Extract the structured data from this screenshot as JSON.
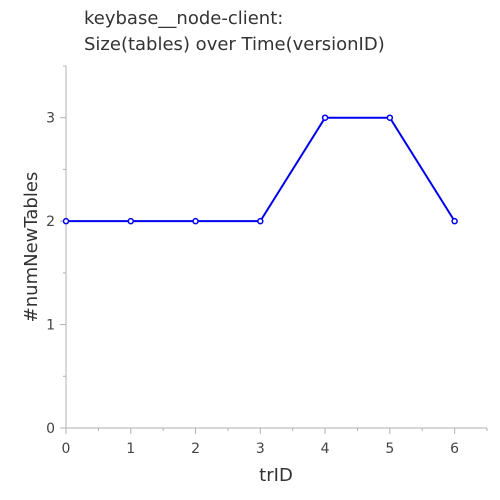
{
  "chart_data": {
    "type": "line",
    "title_lines": [
      "keybase__node-client:",
      "Size(tables) over Time(versionID)"
    ],
    "xlabel": "trID",
    "ylabel": "#numNewTables",
    "x": [
      0,
      1,
      2,
      3,
      4,
      5,
      6
    ],
    "xlim": [
      0,
      6.5
    ],
    "ylim": [
      0,
      3.5
    ],
    "x_ticks": [
      0,
      1,
      2,
      3,
      4,
      5,
      6
    ],
    "y_ticks": [
      0,
      1,
      2,
      3
    ],
    "grid": false,
    "series": [
      {
        "values": [
          2,
          2,
          2,
          2,
          3,
          3,
          2
        ],
        "color": "#0000ee"
      }
    ]
  }
}
